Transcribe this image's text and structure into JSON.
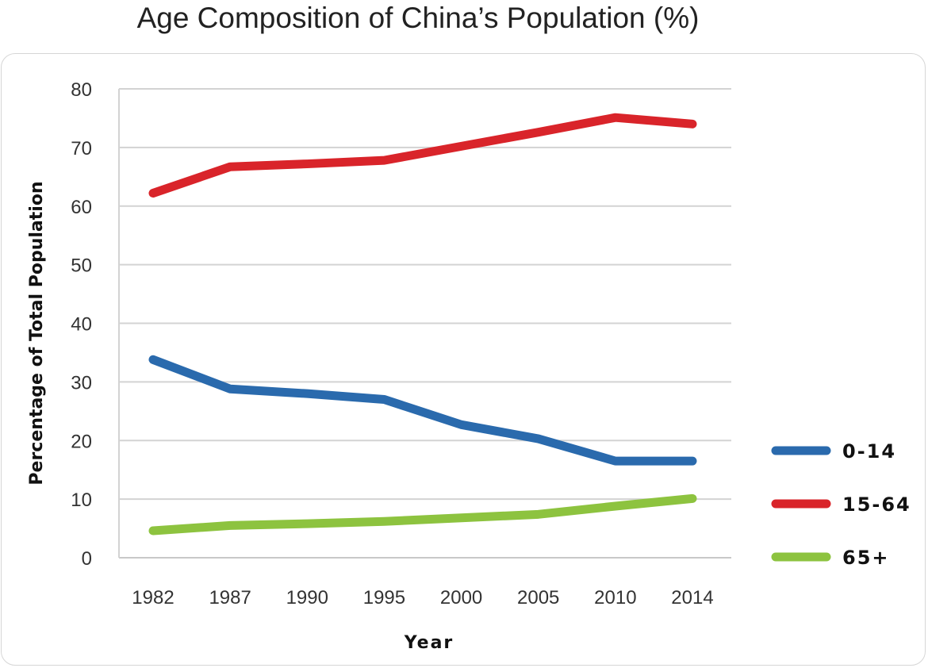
{
  "chart_data": {
    "type": "line",
    "title": "Age Composition of China’s Population (%)",
    "xlabel": "Year",
    "ylabel": "Percentage of Total Population",
    "categories": [
      "1982",
      "1987",
      "1990",
      "1995",
      "2000",
      "2005",
      "2010",
      "2014"
    ],
    "ylim": [
      0,
      80
    ],
    "yticks": [
      0,
      10,
      20,
      30,
      40,
      50,
      60,
      70,
      80
    ],
    "grid": true,
    "legend_placement": "right",
    "series": [
      {
        "name": "0-14",
        "color": "#2a6aad",
        "values": [
          33.8,
          28.8,
          28.0,
          27.0,
          22.7,
          20.3,
          16.5,
          16.5
        ]
      },
      {
        "name": "15-64",
        "color": "#d9242a",
        "values": [
          62.2,
          66.7,
          67.2,
          67.8,
          70.2,
          72.6,
          75.1,
          74.0
        ]
      },
      {
        "name": "65+",
        "color": "#8dc33f",
        "values": [
          4.6,
          5.5,
          5.8,
          6.2,
          6.8,
          7.4,
          8.8,
          10.1
        ]
      }
    ]
  }
}
